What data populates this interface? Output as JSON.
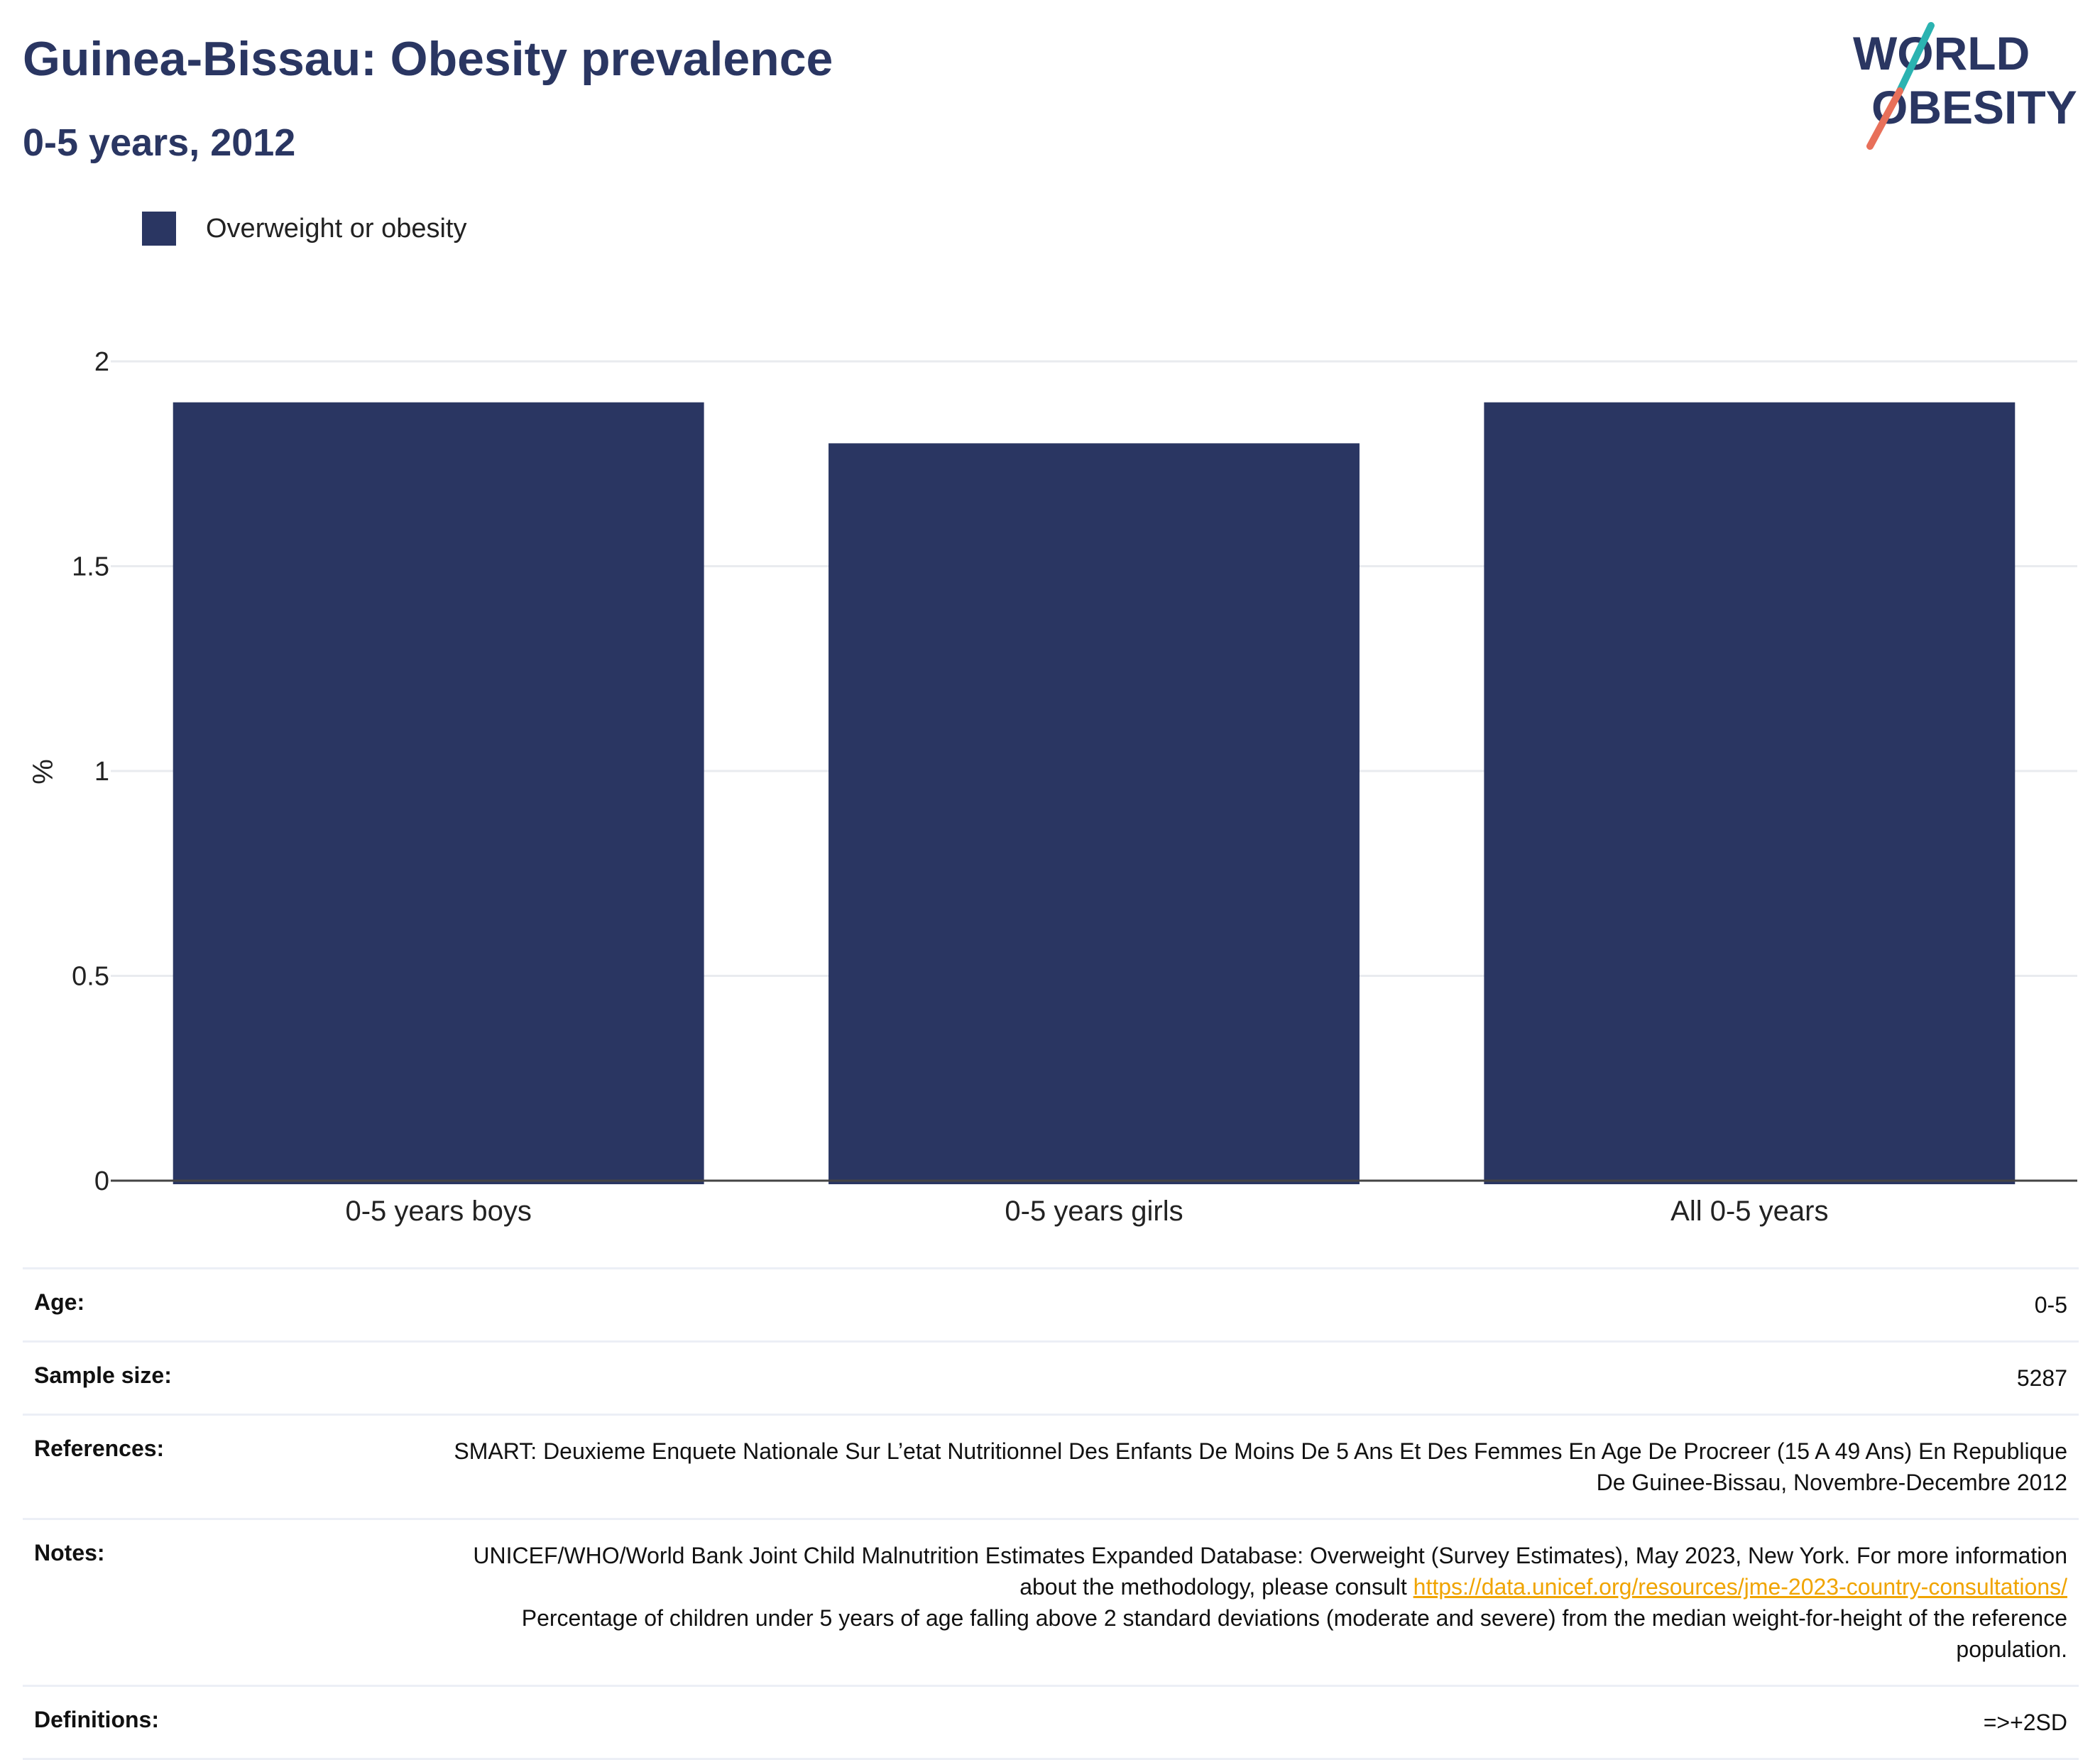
{
  "title": "Guinea-Bissau: Obesity prevalence",
  "subtitle": "0-5 years, 2012",
  "logo": {
    "line1": "WORLD",
    "line2": "OBESITY"
  },
  "colors": {
    "bar": "#2a3662",
    "title": "#2a3662",
    "logo_teal": "#2bb3b1",
    "logo_coral": "#e8705a",
    "link": "#f0a400"
  },
  "legend": {
    "label": "Overweight or obesity"
  },
  "chart_data": {
    "type": "bar",
    "categories": [
      "0-5 years boys",
      "0-5 years girls",
      "All 0-5 years"
    ],
    "series": [
      {
        "name": "Overweight or obesity",
        "values": [
          1.9,
          1.8,
          1.9
        ]
      }
    ],
    "ylabel": "%",
    "ylim": [
      0,
      2
    ],
    "yticks": [
      "0",
      "0.5",
      "1",
      "1.5",
      "2"
    ],
    "grid": true,
    "legend_position": "top-left"
  },
  "meta": {
    "age_label": "Age:",
    "age_value": "0-5",
    "sample_label": "Sample size:",
    "sample_value": "5287",
    "references_label": "References:",
    "references_value": "SMART: Deuxieme Enquete Nationale Sur L’etat Nutritionnel Des Enfants De Moins De 5 Ans Et Des Femmes En Age De Procreer (15 A 49 Ans) En Republique De Guinee-Bissau, Novembre-Decembre 2012",
    "notes_label": "Notes:",
    "notes_text1": "UNICEF/WHO/World Bank Joint Child Malnutrition Estimates Expanded Database: Overweight (Survey Estimates), May 2023, New York. For more information about the methodology, please consult ",
    "notes_link": "https://data.unicef.org/resources/jme-2023-country-consultations/",
    "notes_text2": "Percentage of children under 5 years of age falling above 2 standard deviations (moderate and severe) from the median weight-for-height of the reference population.",
    "definitions_label": "Definitions:",
    "definitions_value": "=>+2SD"
  }
}
